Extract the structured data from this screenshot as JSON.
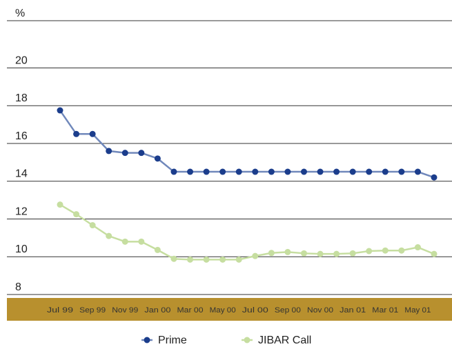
{
  "chart_data": {
    "type": "line",
    "categories": [
      "Jul 99",
      null,
      "Sep 99",
      null,
      "Nov 99",
      null,
      "Jan 00",
      null,
      "Mar 00",
      null,
      "May 00",
      null,
      "Jul 00",
      null,
      "Sep 00",
      null,
      "Nov 00",
      null,
      "Jan 01",
      null,
      "Mar 01",
      null,
      "May 01",
      null
    ],
    "series": [
      {
        "name": "Prime",
        "color": "#1b3d8c",
        "line_color": "#7088bb",
        "values": [
          17.75,
          16.5,
          16.5,
          15.6,
          15.5,
          15.5,
          15.2,
          14.5,
          14.5,
          14.5,
          14.5,
          14.5,
          14.5,
          14.5,
          14.5,
          14.5,
          14.5,
          14.5,
          14.5,
          14.5,
          14.5,
          14.5,
          14.5,
          14.2
        ]
      },
      {
        "name": "JIBAR Call",
        "color": "#c6dea0",
        "line_color": "#c6dea0",
        "values": [
          12.76,
          12.25,
          11.67,
          11.1,
          10.8,
          10.8,
          10.36,
          9.89,
          9.85,
          9.85,
          9.85,
          9.85,
          10.04,
          10.2,
          10.25,
          10.18,
          10.15,
          10.15,
          10.18,
          10.3,
          10.33,
          10.33,
          10.5,
          10.15
        ]
      }
    ],
    "ylim": [
      8,
      22.5
    ],
    "yticks": [
      8,
      10,
      12,
      14,
      16,
      18,
      20,
      {
        "value": 22.5,
        "label": "%"
      }
    ],
    "grid": true,
    "band_color": "#b8902e",
    "legend": "bottom"
  }
}
